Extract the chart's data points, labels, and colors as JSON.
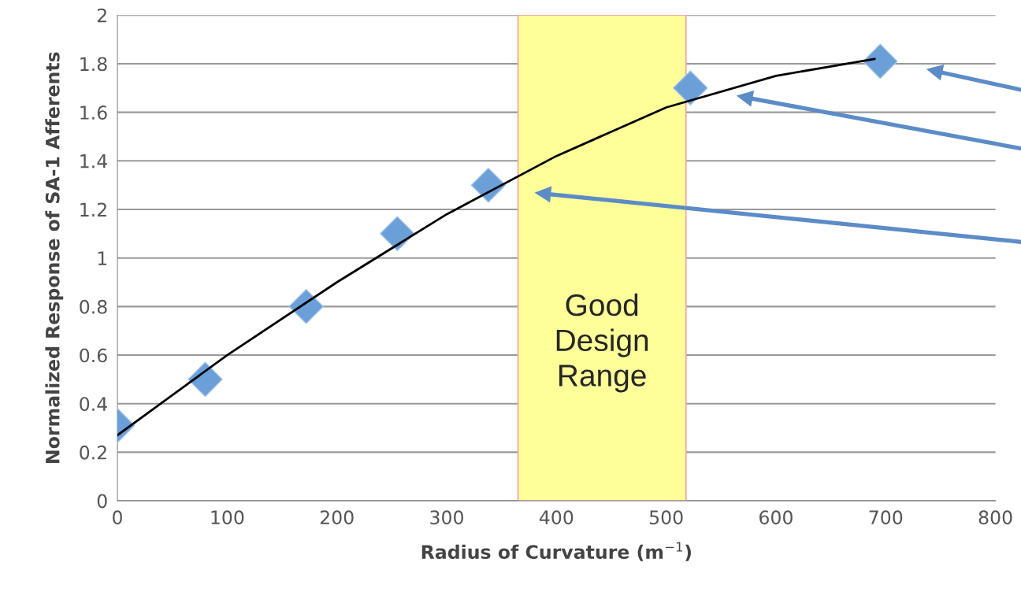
{
  "chart_data": {
    "type": "scatter",
    "xlabel": "Radius of Curvature (m$^{−1}$)",
    "ylabel": "Normalized Response of SA-1 Afferents",
    "xlim": [
      0,
      800
    ],
    "xticks": [
      0,
      100,
      200,
      300,
      400,
      500,
      600,
      700,
      800
    ],
    "ylim": [
      0,
      2
    ],
    "yticks": [
      0,
      0.2,
      0.4,
      0.6,
      0.8,
      1,
      1.2,
      1.4,
      1.6,
      1.8,
      2
    ],
    "grid": "y",
    "series": [
      {
        "marker": "diamond",
        "color": "#6a9fd8",
        "x": [
          0,
          80,
          172,
          255,
          338,
          522,
          695
        ],
        "values": [
          0.31,
          0.5,
          0.8,
          1.1,
          1.3,
          1.7,
          1.81
        ]
      },
      {
        "type": "line",
        "marker": "none",
        "line_style": "solid",
        "color": "#000000",
        "x": [
          0,
          100,
          200,
          300,
          400,
          500,
          600,
          690
        ],
        "values": [
          0.27,
          0.6,
          0.9,
          1.18,
          1.42,
          1.62,
          1.75,
          1.82
        ]
      }
    ],
    "bands": [
      {
        "axis": "x",
        "from": 365,
        "to": 518,
        "label": "Good\nDesign\nRange",
        "color": "#ffff99"
      }
    ]
  }
}
